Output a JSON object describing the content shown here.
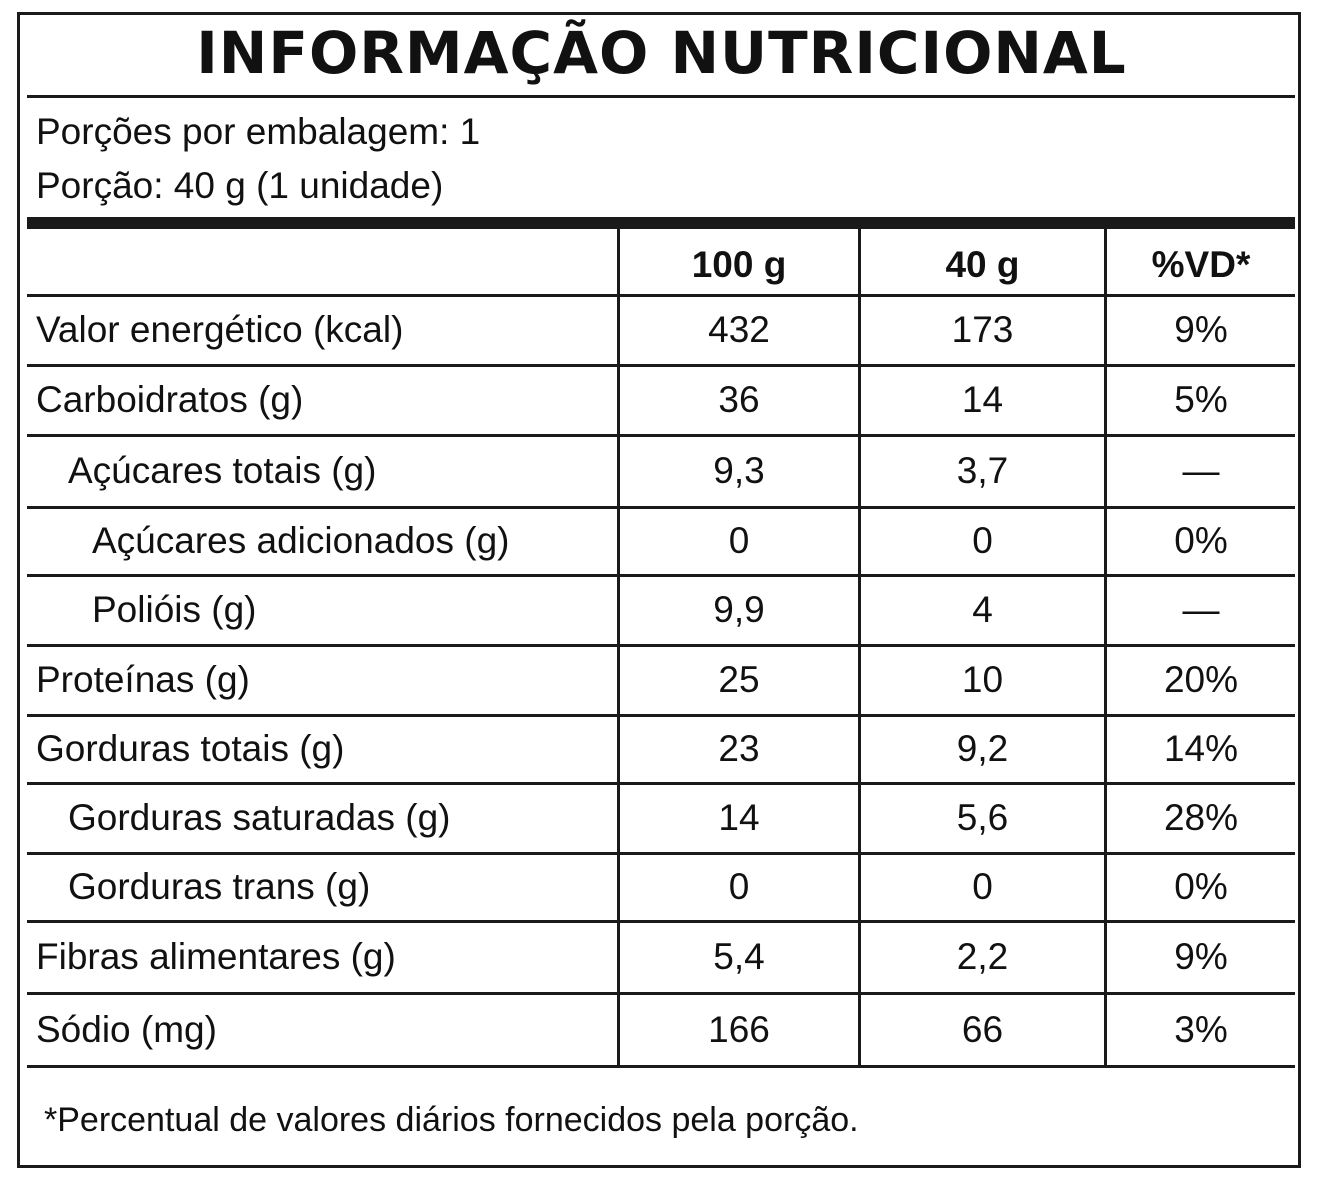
{
  "title": "INFORMAÇÃO NUTRICIONAL",
  "servings_per_package": "Porções por embalagem: 1",
  "serving_size": "Porção: 40 g (1 unidade)",
  "columns": [
    "100 g",
    "40 g",
    "%VD*"
  ],
  "rows": [
    {
      "name": "Valor energético (kcal)",
      "per100": "432",
      "perServing": "173",
      "dv": "9%"
    },
    {
      "name": "Carboidratos (g)",
      "per100": "36",
      "perServing": "14",
      "dv": "5%"
    },
    {
      "name": "Açúcares totais (g)",
      "per100": "9,3",
      "perServing": "3,7",
      "dv": "—"
    },
    {
      "name": "Açúcares adicionados (g)",
      "per100": "0",
      "perServing": "0",
      "dv": "0%"
    },
    {
      "name": "Polióis (g)",
      "per100": "9,9",
      "perServing": "4",
      "dv": "—"
    },
    {
      "name": "Proteínas (g)",
      "per100": "25",
      "perServing": "10",
      "dv": "20%"
    },
    {
      "name": "Gorduras totais (g)",
      "per100": "23",
      "perServing": "9,2",
      "dv": "14%"
    },
    {
      "name": "Gorduras saturadas (g)",
      "per100": "14",
      "perServing": "5,6",
      "dv": "28%"
    },
    {
      "name": "Gorduras trans (g)",
      "per100": "0",
      "perServing": "0",
      "dv": "0%"
    },
    {
      "name": "Fibras alimentares (g)",
      "per100": "5,4",
      "perServing": "2,2",
      "dv": "9%"
    },
    {
      "name": "Sódio (mg)",
      "per100": "166",
      "perServing": "66",
      "dv": "3%"
    }
  ],
  "footnote": "*Percentual de valores diários fornecidos pela porção."
}
